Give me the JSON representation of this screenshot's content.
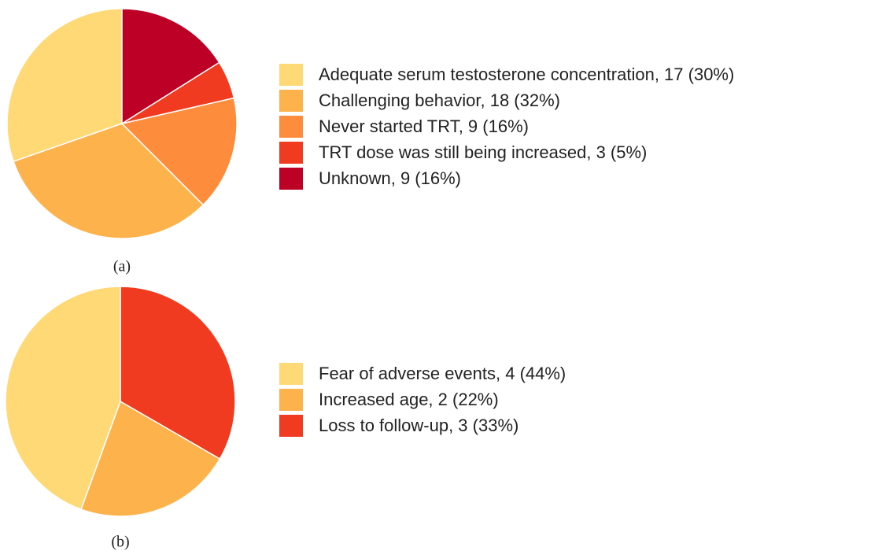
{
  "chart_data": [
    {
      "type": "pie",
      "label": "(a)",
      "categories": [
        "Adequate serum testosterone concentration, 17 (30%)",
        "Challenging behavior, 18 (32%)",
        "Never started TRT, 9 (16%)",
        "TRT dose was still being increased, 3 (5%)",
        "Unknown, 9 (16%)"
      ],
      "values": [
        17,
        18,
        9,
        3,
        9
      ],
      "colors": [
        "#fed976",
        "#feb24c",
        "#fd8d3c",
        "#f03b20",
        "#bd0026"
      ]
    },
    {
      "type": "pie",
      "label": "(b)",
      "categories": [
        "Fear of adverse events, 4 (44%)",
        "Increased age, 2 (22%)",
        "Loss to follow-up, 3 (33%)"
      ],
      "values": [
        4,
        2,
        3
      ],
      "colors": [
        "#fed976",
        "#feb24c",
        "#f03b20"
      ]
    }
  ]
}
